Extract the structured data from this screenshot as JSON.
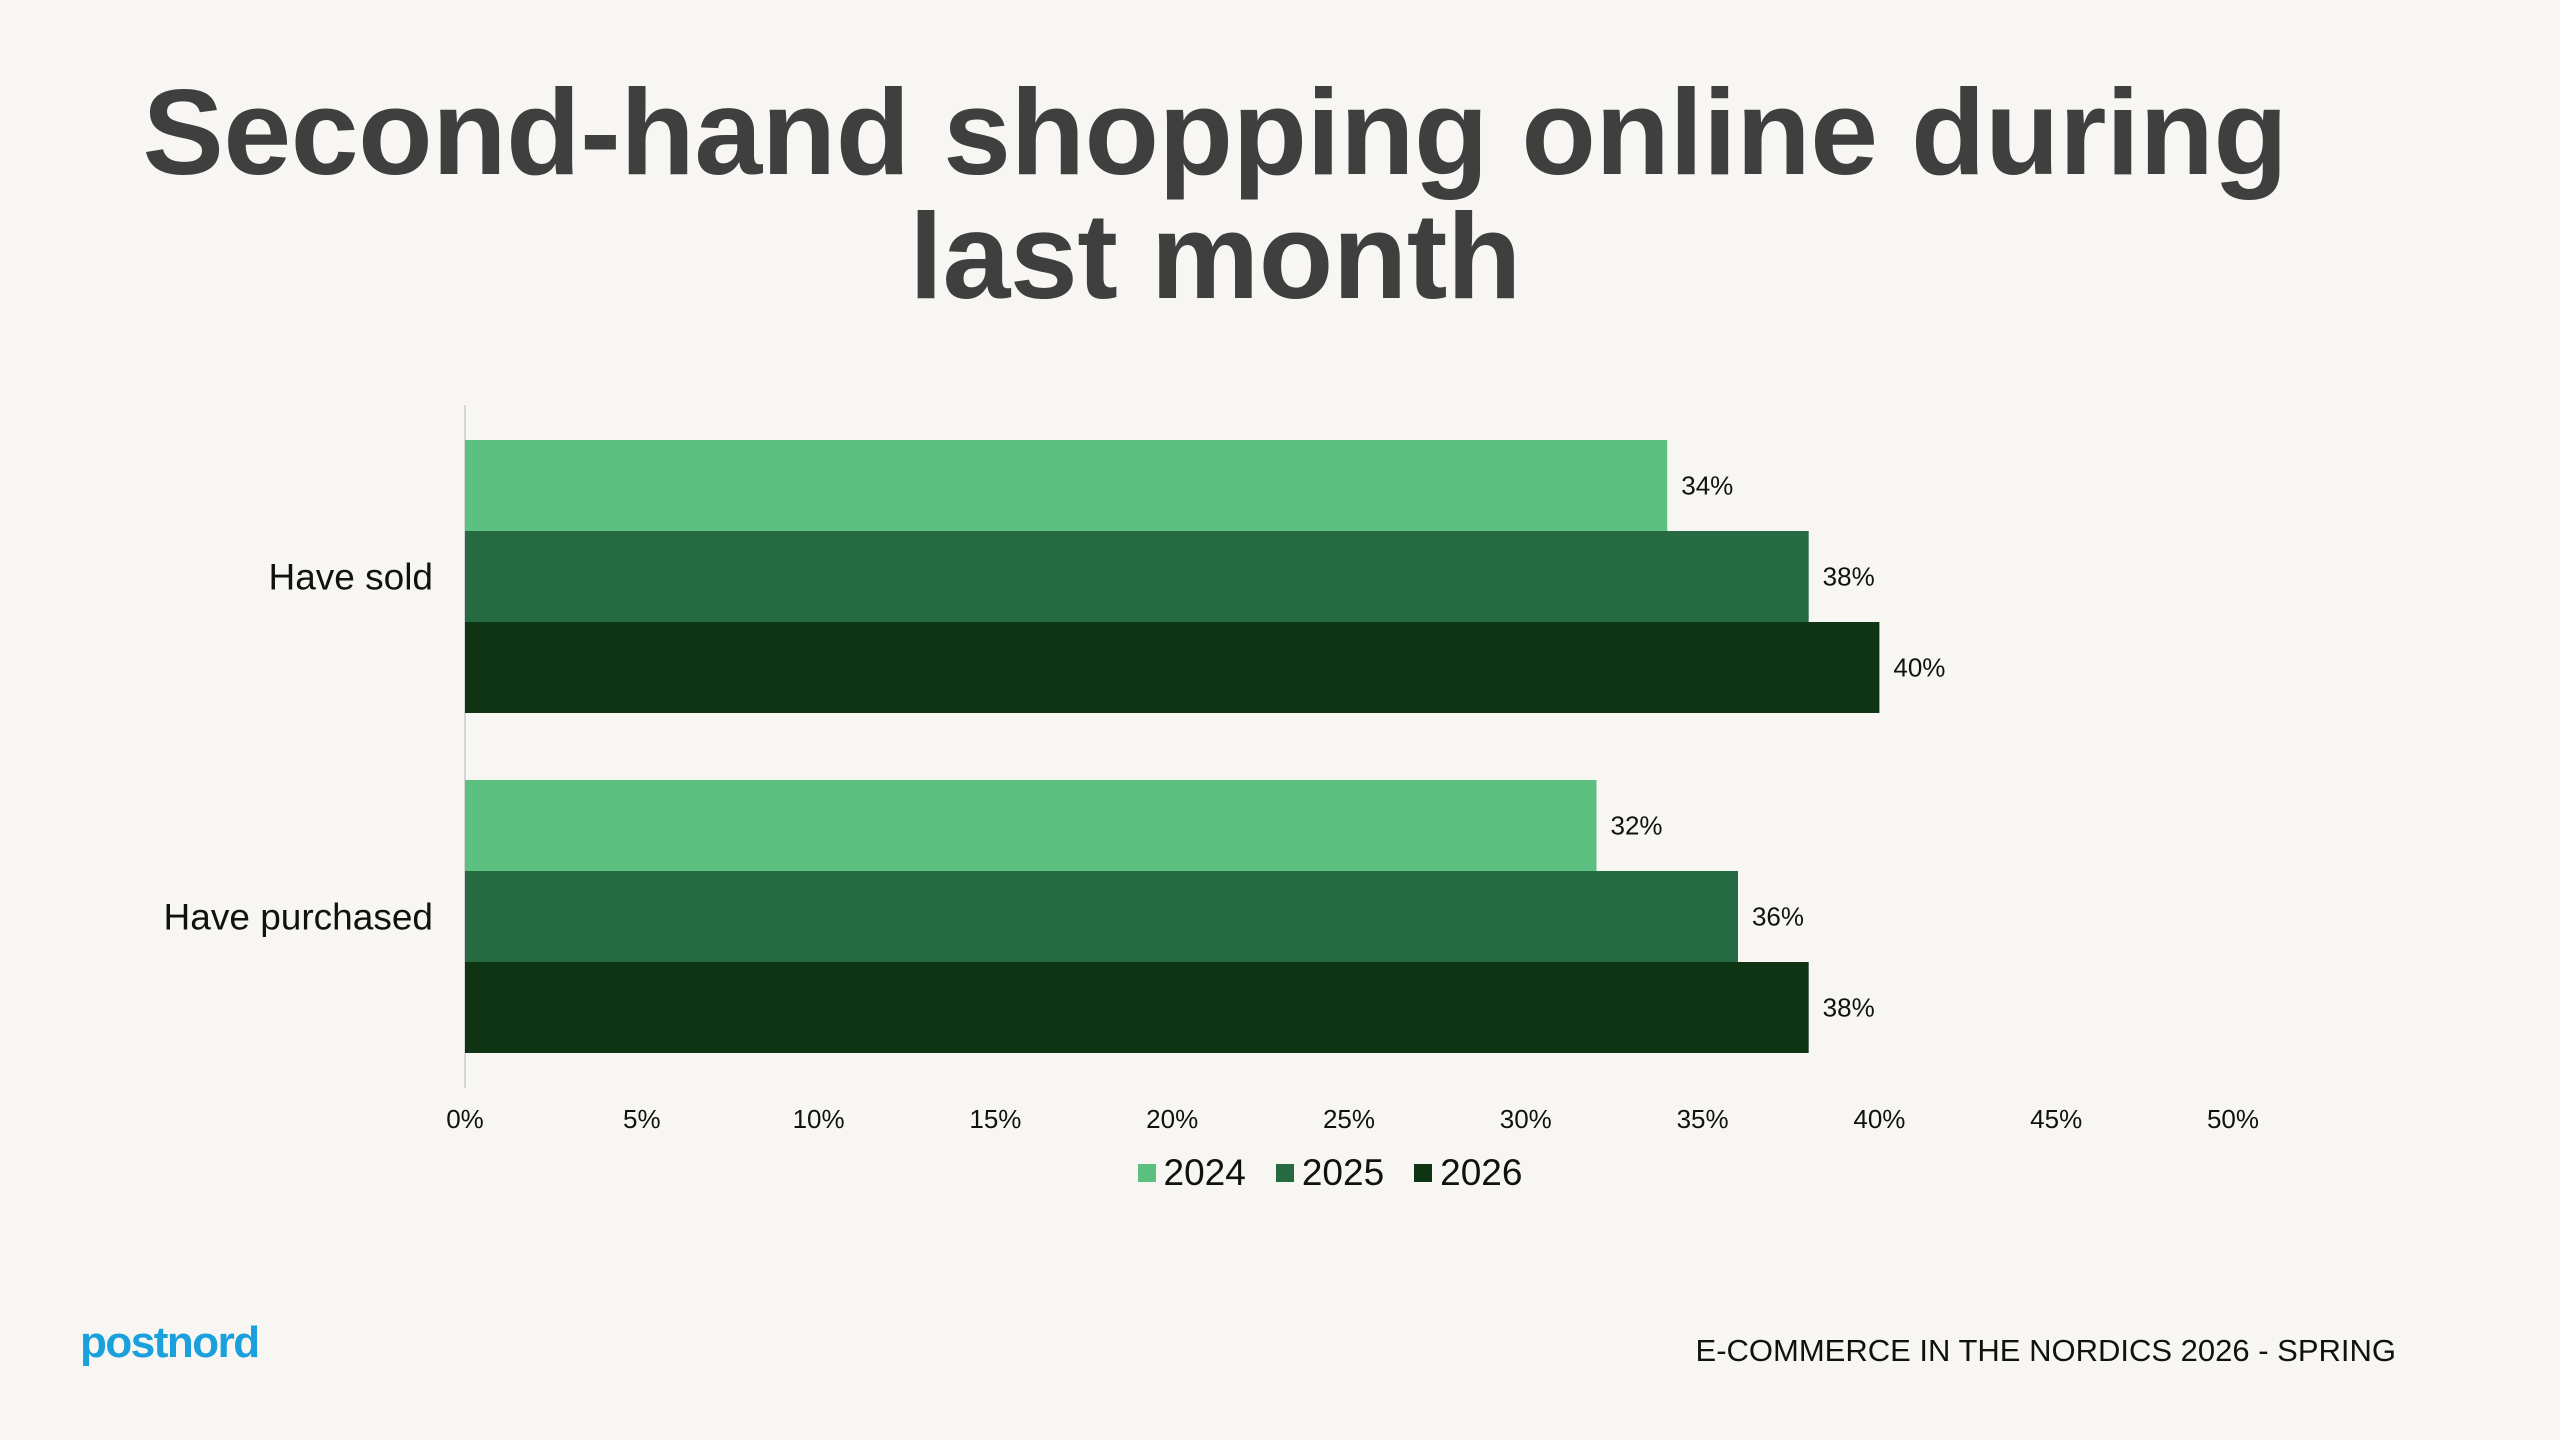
{
  "slide": {
    "title": "Second-hand shopping online during last month",
    "logo_text": "postnord",
    "footer": "E-COMMERCE IN THE NORDICS 2026 - SPRING"
  },
  "chart_data": {
    "type": "bar",
    "orientation": "horizontal",
    "title": "Second-hand shopping online during last month",
    "categories": [
      "Have sold",
      "Have purchased"
    ],
    "series": [
      {
        "name": "2024",
        "values": [
          34,
          32
        ],
        "labels": [
          "34%",
          "32%"
        ],
        "color": "#5cc081"
      },
      {
        "name": "2025",
        "values": [
          38,
          36
        ],
        "labels": [
          "38%",
          "36%"
        ],
        "color": "#256a40"
      },
      {
        "name": "2026",
        "values": [
          40,
          38
        ],
        "labels": [
          "40%",
          "38%"
        ],
        "color": "#0e3414"
      }
    ],
    "xlim": [
      0,
      50
    ],
    "x_ticks": [
      0,
      5,
      10,
      15,
      20,
      25,
      30,
      35,
      40,
      45,
      50
    ],
    "x_tick_labels": [
      "0%",
      "5%",
      "10%",
      "15%",
      "20%",
      "25%",
      "30%",
      "35%",
      "40%",
      "45%",
      "50%"
    ],
    "xlabel": "",
    "ylabel": "",
    "grid": false,
    "legend_position": "bottom",
    "unit": "%"
  }
}
